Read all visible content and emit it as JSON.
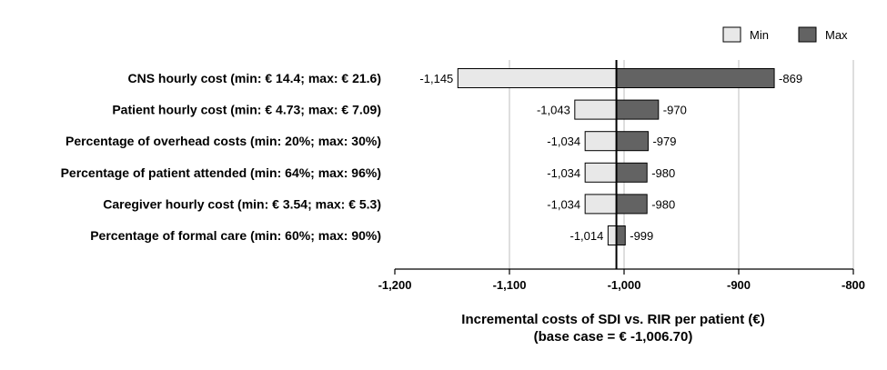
{
  "chart_data": {
    "type": "bar",
    "orientation": "horizontal",
    "variant": "tornado",
    "categories": [
      "CNS hourly cost (min: € 14.4; max: € 21.6)",
      "Patient hourly cost (min: € 4.73; max: € 7.09)",
      "Percentage of overhead costs (min: 20%; max: 30%)",
      "Percentage of patient attended (min: 64%; max: 96%)",
      "Caregiver hourly cost (min: € 3.54; max: € 5.3)",
      "Percentage of formal care (min: 60%; max: 90%)"
    ],
    "series": [
      {
        "name": "Min",
        "color": "#e8e8e8",
        "values": [
          -1145,
          -1043,
          -1034,
          -1034,
          -1034,
          -1014
        ],
        "labels": [
          "-1,145",
          "-1,043",
          "-1,034",
          "-1,034",
          "-1,034",
          "-1,014"
        ]
      },
      {
        "name": "Max",
        "color": "#636363",
        "values": [
          -869,
          -970,
          -979,
          -980,
          -980,
          -999
        ],
        "labels": [
          "-869",
          "-970",
          "-979",
          "-980",
          "-980",
          "-999"
        ]
      }
    ],
    "base_case": -1006.7,
    "xlim": [
      -1200,
      -800
    ],
    "xticks": [
      -1200,
      -1100,
      -1000,
      -900,
      -800
    ],
    "xtick_labels": [
      "-1,200",
      "-1,100",
      "-1,000",
      "-900",
      "-800"
    ],
    "xlabel": "Incremental costs of SDI vs. RIR per patient (€)",
    "xlabel_sub": "(base case = € -1,006.70)",
    "grid": "vertical",
    "legend_position": "top-right"
  }
}
